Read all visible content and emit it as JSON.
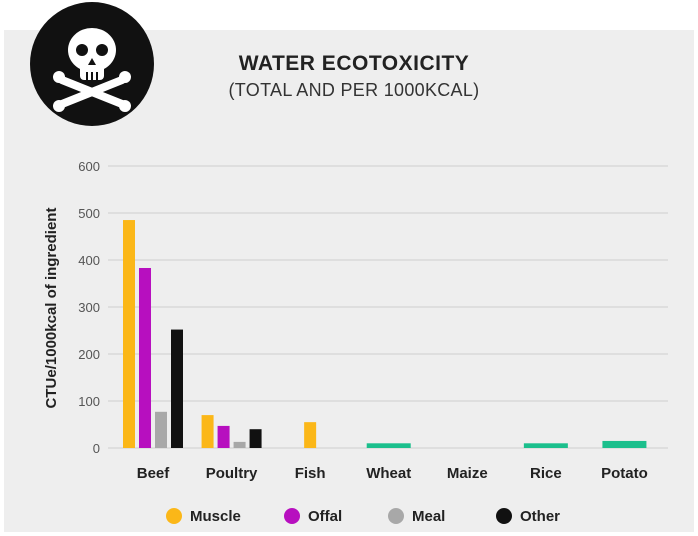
{
  "colors": {
    "panel_bg": "#eeeeee",
    "icon_circle": "#111111",
    "icon_fg": "#ffffff",
    "grid": "#cfcfcf",
    "muscle": "#fbb718",
    "offal": "#b70fbf",
    "meal": "#a8a8a8",
    "other": "#111111",
    "plant": "#1bbf8c"
  },
  "icon": "skull-crossbones-icon",
  "chart_data": {
    "type": "bar",
    "title": "WATER ECOTOXICITY",
    "subtitle": "(TOTAL AND PER 1000KCAL)",
    "ylabel": "CTUe/1000kcal of ingredient",
    "xlabel": "",
    "ylim": [
      0,
      600
    ],
    "yticks": [
      0,
      100,
      200,
      300,
      400,
      500,
      600
    ],
    "grid": true,
    "legend_position": "bottom",
    "categories": [
      "Beef",
      "Poultry",
      "Fish",
      "Wheat",
      "Maize",
      "Rice",
      "Potato"
    ],
    "series": [
      {
        "name": "Muscle",
        "color": "#fbb718",
        "values": [
          485,
          70,
          55,
          null,
          null,
          null,
          null
        ]
      },
      {
        "name": "Offal",
        "color": "#b70fbf",
        "values": [
          383,
          47,
          null,
          null,
          null,
          null,
          null
        ]
      },
      {
        "name": "Meal",
        "color": "#a8a8a8",
        "values": [
          77,
          13,
          null,
          null,
          null,
          null,
          null
        ]
      },
      {
        "name": "Other",
        "color": "#111111",
        "values": [
          252,
          40,
          null,
          null,
          null,
          null,
          null
        ]
      }
    ],
    "plant_values": [
      null,
      null,
      null,
      10,
      0,
      10,
      15
    ],
    "plant_color": "#1bbf8c"
  }
}
